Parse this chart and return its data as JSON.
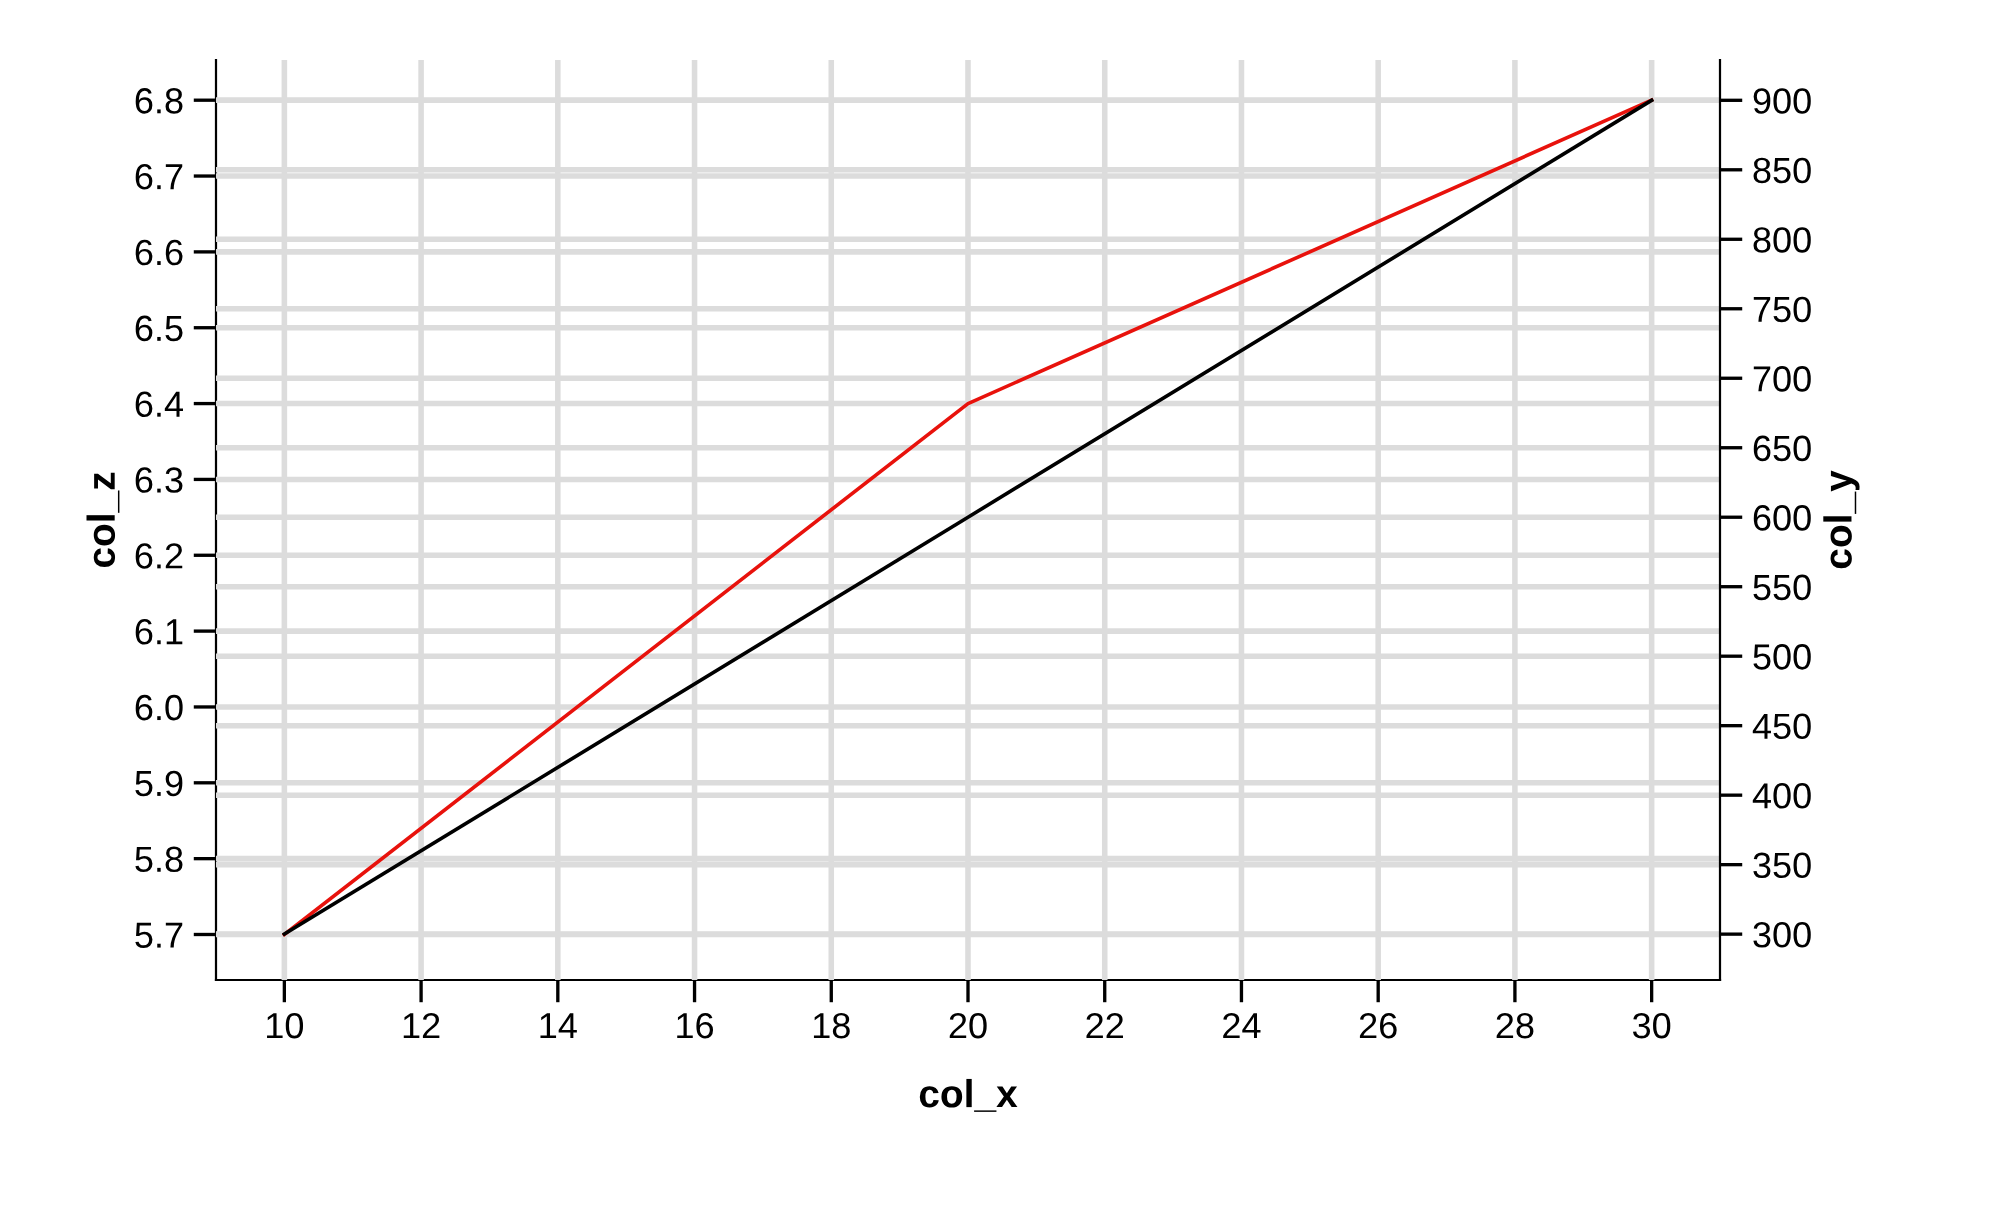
{
  "chart_data": {
    "type": "line",
    "xlabel": "col_x",
    "ylabel": "col_z",
    "y2label": "col_y",
    "x": [
      10,
      20,
      30
    ],
    "series": [
      {
        "color": "#e8120c",
        "values": [
          5.7,
          6.4,
          6.8
        ]
      },
      {
        "color": "#000000",
        "values": [
          300,
          600,
          900
        ],
        "axis": "y2"
      }
    ],
    "xlim": [
      9,
      31
    ],
    "xticks": [
      10,
      12,
      14,
      16,
      18,
      20,
      22,
      24,
      26,
      28,
      30
    ],
    "ylim": [
      5.64,
      6.853
    ],
    "yticks": [
      5.7,
      5.8,
      5.9,
      {
        "value": 6.0,
        "label": "6.0"
      },
      6.1,
      6.2,
      6.3,
      6.4,
      6.5,
      6.6,
      6.7,
      6.8
    ],
    "y2lim": [
      267,
      929
    ],
    "y2ticks": [
      300,
      350,
      400,
      450,
      500,
      550,
      600,
      650,
      700,
      750,
      800,
      850,
      900
    ],
    "grid": true,
    "legend": false
  }
}
